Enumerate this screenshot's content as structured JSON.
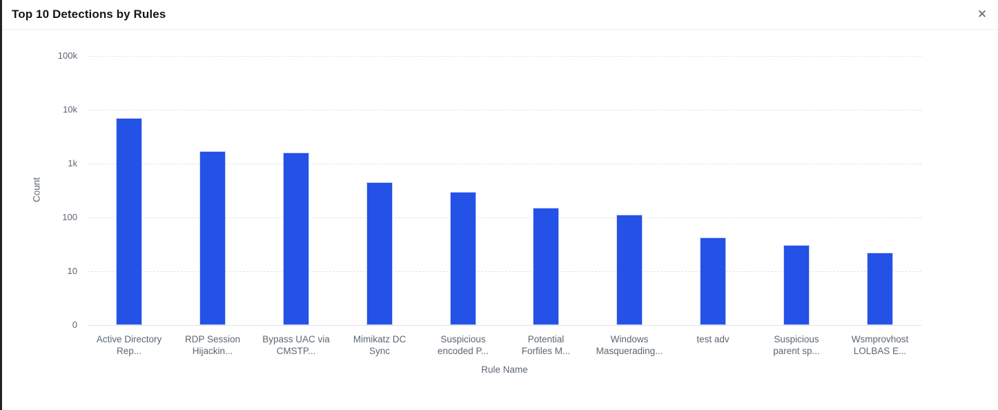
{
  "panel": {
    "title": "Top 10 Detections by Rules"
  },
  "icons": {
    "close": "✕"
  },
  "colors": {
    "bar": "#2451e6",
    "bar_border": "#ccd3f5",
    "grid": "#e3e4e8",
    "axis_text": "#5c6672",
    "title_text": "#13161b"
  },
  "chart_data": {
    "type": "bar",
    "title": "Top 10 Detections by Rules",
    "xlabel": "Rule Name",
    "ylabel": "Count",
    "y_scale": "log",
    "y_ticks": [
      "100k",
      "10k",
      "1k",
      "100",
      "10",
      "0"
    ],
    "ylim": [
      0,
      100000
    ],
    "grid": true,
    "legend": false,
    "bar_color": "#2451e6",
    "categories": [
      "Active Directory Rep...",
      "RDP Session Hijackin...",
      "Bypass UAC via CMSTP...",
      "Mimikatz DC Sync",
      "Suspicious encoded P...",
      "Potential Forfiles M...",
      "Windows Masquerading...",
      "test adv",
      "Suspicious parent sp...",
      "Wsmprovhost LOLBAS E..."
    ],
    "category_lines": [
      [
        "Active Directory",
        "Rep..."
      ],
      [
        "RDP Session",
        "Hijackin..."
      ],
      [
        "Bypass UAC via",
        "CMSTP..."
      ],
      [
        "Mimikatz DC",
        "Sync"
      ],
      [
        "Suspicious",
        "encoded P..."
      ],
      [
        "Potential",
        "Forfiles M..."
      ],
      [
        "Windows",
        "Masquerading..."
      ],
      [
        "test adv"
      ],
      [
        "Suspicious",
        "parent sp..."
      ],
      [
        "Wsmprovhost",
        "LOLBAS E..."
      ]
    ],
    "values": [
      7000,
      1700,
      1600,
      450,
      300,
      150,
      112,
      43,
      31,
      22
    ]
  }
}
